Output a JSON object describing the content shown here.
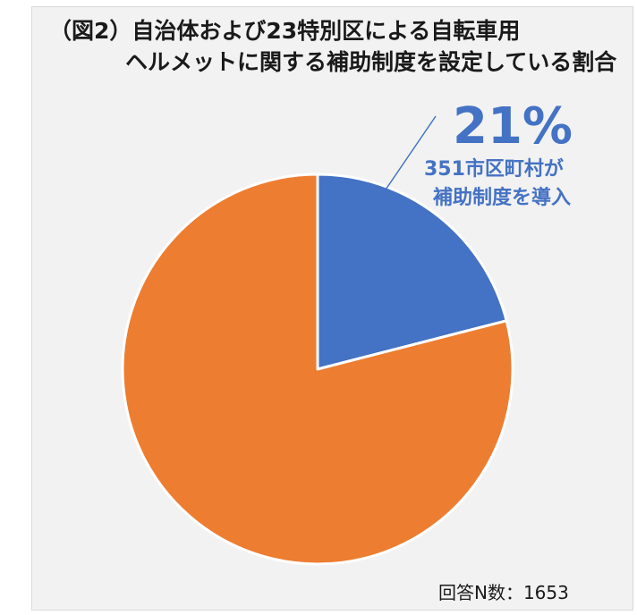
{
  "header": {
    "title_line1": "（図2）自治体および23特別区による自転車用",
    "title_line2": "ヘルメットに関する補助制度を設定している割合"
  },
  "callout": {
    "percent": "21%",
    "line1": "351市区町村が",
    "line2": "補助制度を導入"
  },
  "footer": {
    "sample": "回答N数：1653"
  },
  "chart_data": {
    "type": "pie",
    "values": [
      21,
      79
    ],
    "colors": [
      "#4472c4",
      "#ed7d31"
    ],
    "start_angle_deg": 0,
    "direction": "clockwise"
  }
}
